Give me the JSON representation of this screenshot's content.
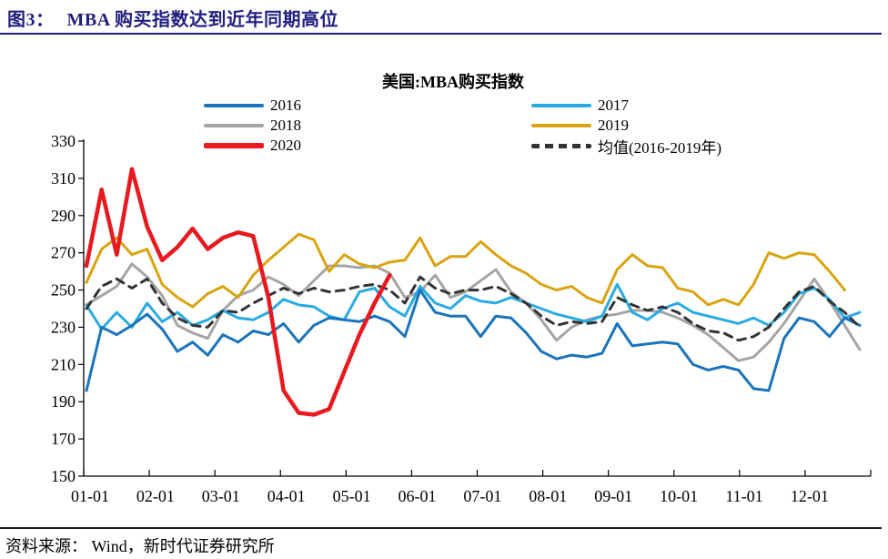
{
  "header": {
    "figure_label": "图3：",
    "title": "MBA 购买指数达到近年同期高位",
    "accent_color": "#221E7F"
  },
  "footer": {
    "source_text": "资料来源： Wind，新时代证券研究所"
  },
  "legend": {
    "columns": [
      [
        "2016",
        "2018",
        "2020"
      ],
      [
        "2017",
        "2019",
        "均值(2016-2019年)"
      ]
    ]
  },
  "chart_data": {
    "type": "line",
    "title": "美国:MBA购买指数",
    "x_unit": "week",
    "xlabel": "",
    "ylabel": "",
    "ylim": [
      150,
      330
    ],
    "y_ticks": [
      150,
      170,
      190,
      210,
      230,
      250,
      270,
      290,
      310,
      330
    ],
    "categories": [
      "01-01",
      "02-01",
      "03-01",
      "04-01",
      "05-01",
      "06-01",
      "07-01",
      "08-01",
      "09-01",
      "10-01",
      "11-01",
      "12-01"
    ],
    "grid": false,
    "legend_position": "top",
    "series": [
      {
        "name": "2016",
        "color": "#1B74BB",
        "style": "solid",
        "width": 3,
        "values": [
          196,
          230,
          226,
          231,
          237,
          229,
          217,
          222,
          215,
          226,
          222,
          228,
          226,
          232,
          222,
          231,
          235,
          234,
          233,
          236,
          233,
          225,
          250,
          238,
          236,
          236,
          225,
          236,
          235,
          227,
          217,
          213,
          215,
          214,
          216,
          232,
          220,
          221,
          222,
          221,
          210,
          207,
          209,
          207,
          197,
          196,
          224,
          235,
          233,
          225,
          235,
          231
        ]
      },
      {
        "name": "2017",
        "color": "#29ABE2",
        "style": "solid",
        "width": 3,
        "values": [
          242,
          229,
          238,
          230,
          243,
          233,
          238,
          231,
          234,
          239,
          235,
          234,
          238,
          245,
          242,
          241,
          236,
          234,
          249,
          251,
          241,
          236,
          252,
          243,
          240,
          247,
          244,
          243,
          246,
          243,
          240,
          237,
          235,
          233,
          236,
          253,
          238,
          234,
          240,
          243,
          238,
          236,
          234,
          232,
          235,
          231,
          238,
          248,
          251,
          245,
          235,
          238
        ]
      },
      {
        "name": "2018",
        "color": "#A5A5A5",
        "style": "solid",
        "width": 3,
        "values": [
          242,
          247,
          252,
          264,
          257,
          247,
          231,
          227,
          224,
          239,
          247,
          250,
          257,
          253,
          247,
          255,
          263,
          263,
          262,
          263,
          259,
          246,
          249,
          258,
          246,
          249,
          255,
          261,
          249,
          243,
          234,
          223,
          230,
          234,
          236,
          237,
          239,
          239,
          238,
          235,
          231,
          226,
          219,
          212,
          214,
          222,
          232,
          244,
          256,
          244,
          231,
          218
        ]
      },
      {
        "name": "2019",
        "color": "#D9A410",
        "style": "solid",
        "width": 3,
        "values": [
          254,
          272,
          278,
          269,
          272,
          253,
          246,
          241,
          248,
          252,
          246,
          258,
          266,
          273,
          280,
          277,
          260,
          269,
          264,
          262,
          265,
          266,
          278,
          263,
          268,
          268,
          276,
          269,
          263,
          259,
          253,
          250,
          252,
          246,
          243,
          261,
          269,
          263,
          262,
          251,
          249,
          242,
          245,
          242,
          253,
          270,
          267,
          270,
          269,
          260,
          250
        ]
      },
      {
        "name": "2020",
        "color": "#E8191F",
        "style": "solid",
        "width": 4.5,
        "values": [
          263,
          304,
          269,
          315,
          284,
          266,
          273,
          283,
          272,
          278,
          281,
          279,
          246,
          196,
          184,
          183,
          186,
          206,
          226,
          243,
          258
        ]
      },
      {
        "name": "均值(2016-2019年)",
        "color": "#333333",
        "style": "dashed",
        "width": 3,
        "values": [
          240,
          252,
          256,
          251,
          256,
          243,
          235,
          231,
          230,
          239,
          238,
          243,
          247,
          251,
          248,
          251,
          249,
          250,
          252,
          253,
          250,
          243,
          257,
          251,
          248,
          250,
          250,
          252,
          248,
          243,
          236,
          231,
          233,
          232,
          233,
          246,
          242,
          239,
          241,
          238,
          232,
          228,
          227,
          223,
          225,
          230,
          240,
          249,
          252,
          244,
          238,
          230
        ]
      }
    ]
  }
}
